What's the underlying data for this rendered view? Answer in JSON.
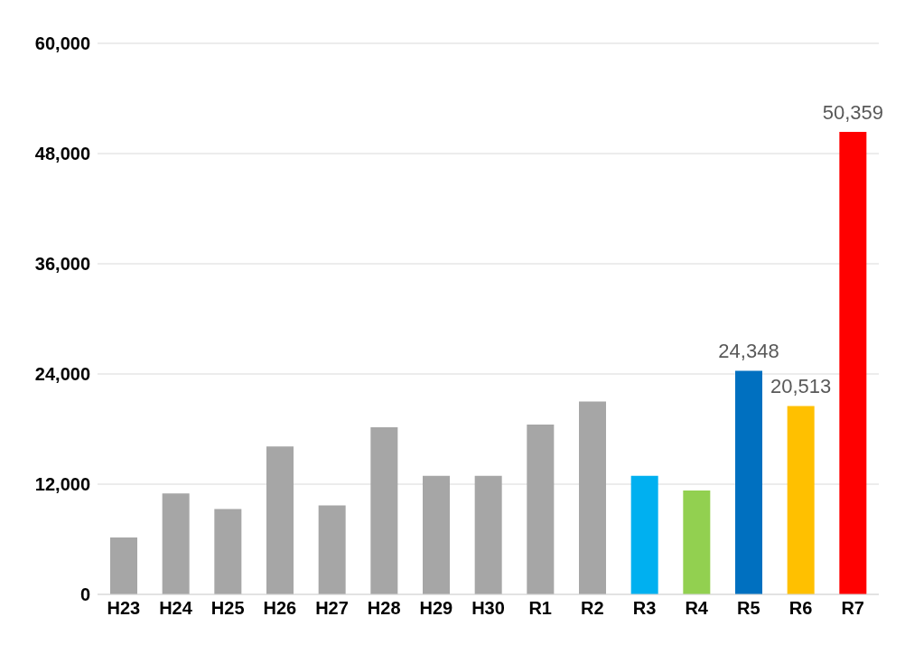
{
  "chart_data": {
    "type": "bar",
    "categories": [
      "H23",
      "H24",
      "H25",
      "H26",
      "H27",
      "H28",
      "H29",
      "H30",
      "R1",
      "R2",
      "R3",
      "R4",
      "R5",
      "R6",
      "R7"
    ],
    "values": [
      6200,
      11000,
      9300,
      16100,
      9700,
      18200,
      12900,
      12900,
      18500,
      21000,
      12900,
      11300,
      24348,
      20513,
      50359
    ],
    "colors": [
      "#a6a6a6",
      "#a6a6a6",
      "#a6a6a6",
      "#a6a6a6",
      "#a6a6a6",
      "#a6a6a6",
      "#a6a6a6",
      "#a6a6a6",
      "#a6a6a6",
      "#a6a6a6",
      "#00b0f0",
      "#92d050",
      "#0070c0",
      "#ffc000",
      "#ff0000"
    ],
    "value_labels": [
      null,
      null,
      null,
      null,
      null,
      null,
      null,
      null,
      null,
      null,
      null,
      null,
      "24,348",
      "20,513",
      "50,359"
    ],
    "ylim": [
      0,
      60000
    ],
    "yticks": [
      {
        "value": 0,
        "label": "0"
      },
      {
        "value": 12000,
        "label": "12,000"
      },
      {
        "value": 24000,
        "label": "24,000"
      },
      {
        "value": 36000,
        "label": "36,000"
      },
      {
        "value": 48000,
        "label": "48,000"
      },
      {
        "value": 60000,
        "label": "60,000"
      }
    ],
    "grid": "y",
    "legend": false
  }
}
